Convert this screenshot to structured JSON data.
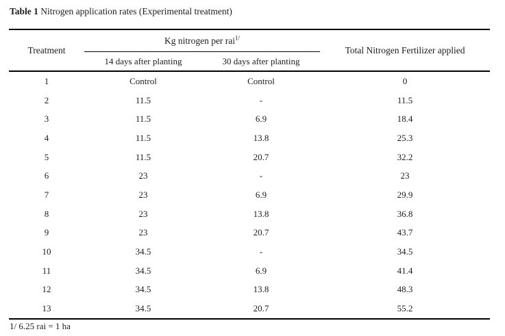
{
  "page": {
    "caption_label": "Table 1",
    "caption_text": " Nitrogen application rates (Experimental treatment)",
    "footnote": "1/ 6.25 rai = 1 ha"
  },
  "table": {
    "columns": {
      "treatment": "Treatment",
      "group": {
        "text": "Kg nitrogen per rai",
        "superscript": "1/"
      },
      "sub_14_days": "14 days after planting",
      "sub_30_days": "30 days after planting",
      "total": "Total Nitrogen Fertilizer applied"
    },
    "rows": [
      [
        "1",
        "Control",
        "Control",
        "0"
      ],
      [
        "2",
        "11.5",
        "-",
        "11.5"
      ],
      [
        "3",
        "11.5",
        "6.9",
        "18.4"
      ],
      [
        "4",
        "11.5",
        "13.8",
        "25.3"
      ],
      [
        "5",
        "11.5",
        "20.7",
        "32.2"
      ],
      [
        "6",
        "23",
        "-",
        "23"
      ],
      [
        "7",
        "23",
        "6.9",
        "29.9"
      ],
      [
        "8",
        "23",
        "13.8",
        "36.8"
      ],
      [
        "9",
        "23",
        "20.7",
        "43.7"
      ],
      [
        "10",
        "34.5",
        "-",
        "34.5"
      ],
      [
        "11",
        "34.5",
        "6.9",
        "41.4"
      ],
      [
        "12",
        "34.5",
        "13.8",
        "48.3"
      ],
      [
        "13",
        "34.5",
        "20.7",
        "55.2"
      ]
    ]
  },
  "colors": {
    "background": "#ffffff",
    "text": "#1c1c1c",
    "rule": "#000000"
  }
}
